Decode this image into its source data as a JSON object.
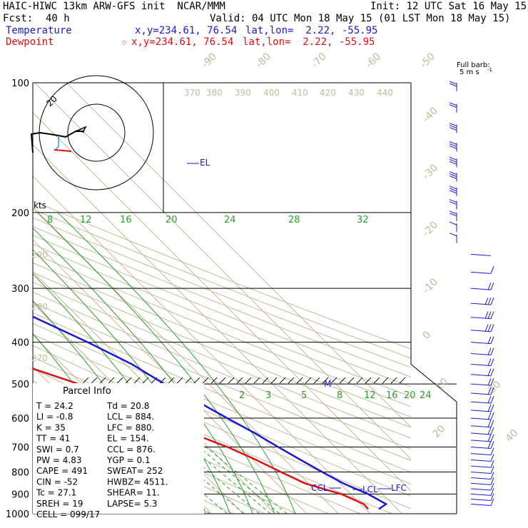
{
  "header": {
    "model": "HAIC-HIWC 13km ARW-GFS init  NCAR/MMM",
    "init": "Init: 12 UTC Sat 16 May 15",
    "fcst_label": "Fcst:",
    "fcst_value": "40 h",
    "valid": "Valid: 04 UTC Mon 18 May 15 (01 LST Mon 18 May 15)",
    "temperature_label": "Temperature",
    "temperature_xy": "x,y=234.61, 76.54",
    "temperature_latlon": "lat,lon=  2.22, -55.95",
    "dewpoint_label": "Dewpoint",
    "dewpoint_marker": "☆",
    "dewpoint_xy": "x,y=234.61, 76.54",
    "dewpoint_latlon": "lat,lon=  2.22, -55.95"
  },
  "colors": {
    "temperature": "#1a1ad0",
    "dewpoint": "#e01010",
    "mixing_ratio": "#2aa02a",
    "dry_adiabat": "#c8b89a",
    "isotherm": "#c8b89a",
    "isobar": "#000000",
    "wind_barb": "#1a1ad0"
  },
  "chart_data": {
    "type": "line",
    "diagram": "skew-T log-P",
    "pressure_levels": [
      "100",
      "200",
      "300",
      "400",
      "500",
      "600",
      "700",
      "800",
      "900",
      "1000"
    ],
    "isotherm_labels": [
      "-90",
      "-80",
      "-70",
      "-60",
      "-50",
      "-40",
      "-30",
      "-20",
      "-10",
      "0",
      "10",
      "20",
      "30",
      "40"
    ],
    "potential_temp_labels": [
      "370",
      "380",
      "390",
      "400",
      "410",
      "420",
      "430",
      "440",
      "290",
      "280",
      "270"
    ],
    "mixing_ratio_upper_labels": [
      "8",
      "12",
      "16",
      "20",
      "24",
      "28",
      "32"
    ],
    "mixing_ratio_lower_labels": [
      "2",
      "3",
      "5",
      "8",
      "12",
      "16",
      "20",
      "24"
    ],
    "series": [
      {
        "name": "Temperature",
        "points": [
          [
            100,
            -74
          ],
          [
            115,
            -77
          ],
          [
            130,
            -75
          ],
          [
            160,
            -68
          ],
          [
            200,
            -57
          ],
          [
            250,
            -44
          ],
          [
            300,
            -33
          ],
          [
            350,
            -24
          ],
          [
            400,
            -15
          ],
          [
            450,
            -8
          ],
          [
            500,
            -4
          ],
          [
            550,
            1
          ],
          [
            600,
            5
          ],
          [
            650,
            9
          ],
          [
            700,
            12
          ],
          [
            750,
            15
          ],
          [
            800,
            18
          ],
          [
            850,
            21
          ],
          [
            900,
            25.5
          ],
          [
            950,
            28
          ],
          [
            975,
            24.2
          ]
        ]
      },
      {
        "name": "Dewpoint",
        "points": [
          [
            100,
            -80
          ],
          [
            130,
            -89
          ],
          [
            150,
            -86
          ],
          [
            170,
            -78
          ],
          [
            190,
            -74
          ],
          [
            200,
            -75
          ],
          [
            220,
            -80
          ],
          [
            250,
            -77
          ],
          [
            300,
            -64
          ],
          [
            350,
            -55
          ],
          [
            400,
            -47
          ],
          [
            440,
            -46
          ],
          [
            500,
            -31
          ],
          [
            560,
            -23
          ],
          [
            600,
            -20
          ],
          [
            650,
            -11
          ],
          [
            700,
            -4
          ],
          [
            750,
            1
          ],
          [
            800,
            5
          ],
          [
            850,
            9
          ],
          [
            900,
            17
          ],
          [
            950,
            21
          ],
          [
            975,
            20.8
          ]
        ]
      }
    ],
    "annotations": [
      "EL",
      "M",
      "CCL",
      "LCL",
      "LFC"
    ],
    "winds_title": "Full barb:",
    "winds_unit": "5 m s",
    "winds_unit_exp": "-1",
    "winds": [
      {
        "p": 100,
        "dir": 270,
        "spd": 12
      },
      {
        "p": 112,
        "dir": 268,
        "spd": 14
      },
      {
        "p": 125,
        "dir": 270,
        "spd": 15
      },
      {
        "p": 138,
        "dir": 272,
        "spd": 17
      },
      {
        "p": 150,
        "dir": 270,
        "spd": 18
      },
      {
        "p": 162,
        "dir": 268,
        "spd": 18
      },
      {
        "p": 175,
        "dir": 270,
        "spd": 16
      },
      {
        "p": 188,
        "dir": 270,
        "spd": 14
      },
      {
        "p": 200,
        "dir": 268,
        "spd": 11
      },
      {
        "p": 212,
        "dir": 272,
        "spd": 8
      },
      {
        "p": 225,
        "dir": 272,
        "spd": 5
      },
      {
        "p": 250,
        "dir": 300,
        "spd": 3
      },
      {
        "p": 275,
        "dir": 80,
        "spd": 8
      },
      {
        "p": 300,
        "dir": 85,
        "spd": 12
      },
      {
        "p": 325,
        "dir": 88,
        "spd": 15
      },
      {
        "p": 350,
        "dir": 90,
        "spd": 16
      },
      {
        "p": 375,
        "dir": 88,
        "spd": 16
      },
      {
        "p": 400,
        "dir": 90,
        "spd": 14
      },
      {
        "p": 425,
        "dir": 88,
        "spd": 14
      },
      {
        "p": 450,
        "dir": 85,
        "spd": 12
      },
      {
        "p": 475,
        "dir": 85,
        "spd": 12
      },
      {
        "p": 500,
        "dir": 88,
        "spd": 10
      },
      {
        "p": 525,
        "dir": 90,
        "spd": 10
      },
      {
        "p": 550,
        "dir": 88,
        "spd": 10
      },
      {
        "p": 575,
        "dir": 85,
        "spd": 10
      },
      {
        "p": 600,
        "dir": 88,
        "spd": 10
      },
      {
        "p": 625,
        "dir": 90,
        "spd": 10
      },
      {
        "p": 650,
        "dir": 92,
        "spd": 10
      },
      {
        "p": 675,
        "dir": 90,
        "spd": 10
      },
      {
        "p": 700,
        "dir": 88,
        "spd": 10
      },
      {
        "p": 725,
        "dir": 90,
        "spd": 8
      },
      {
        "p": 750,
        "dir": 92,
        "spd": 8
      },
      {
        "p": 775,
        "dir": 90,
        "spd": 8
      },
      {
        "p": 800,
        "dir": 88,
        "spd": 8
      },
      {
        "p": 825,
        "dir": 90,
        "spd": 8
      },
      {
        "p": 850,
        "dir": 92,
        "spd": 8
      },
      {
        "p": 875,
        "dir": 90,
        "spd": 8
      },
      {
        "p": 900,
        "dir": 88,
        "spd": 7
      },
      {
        "p": 925,
        "dir": 90,
        "spd": 7
      },
      {
        "p": 950,
        "dir": 92,
        "spd": 6
      }
    ],
    "hodograph": {
      "label_ring": "20",
      "label_units": "kts"
    }
  },
  "parcel": {
    "title": "Parcel Info",
    "rows": [
      [
        "T     =   24.2",
        "Td =  20.8"
      ],
      [
        "LI    =   -0.8",
        "LCL =  884."
      ],
      [
        "K     =     35",
        "LFC =  880."
      ],
      [
        "TT    =     41",
        "EL  =  154."
      ],
      [
        "SWI   =    0.7",
        "CCL =  876."
      ],
      [
        "PW    =   4.83",
        "YGP =   0.1"
      ],
      [
        "CAPE  =    491",
        "SWEAT=  252"
      ],
      [
        "CIN   =    -52",
        "HWBZ= 4511."
      ],
      [
        "Tc    =   27.1",
        "SHEAR=  11."
      ],
      [
        "SREH  =     19",
        "LAPSE=  5.3"
      ],
      [
        "CELL  = 099/17",
        ""
      ]
    ]
  }
}
